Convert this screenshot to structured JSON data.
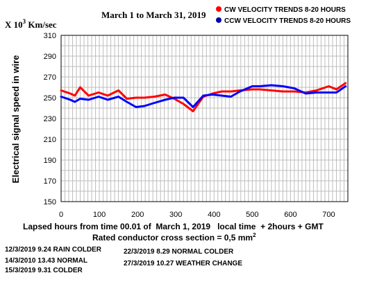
{
  "chart_data": {
    "type": "line",
    "title": "March 1 to March 31, 2019",
    "unit_prefix": "X 10",
    "unit_exponent": "3",
    "unit_suffix": " Km/sec",
    "ylabel": "Electrical signal speed in wire",
    "xlabel": "Lapsed hours from time 00.01 of  March 1, 2019   local time  + 2hours + GMT",
    "subtitle_prefix": "Rated conductor cross section = 0,5 mm",
    "subtitle_exponent": "2",
    "xlim": [
      0,
      750
    ],
    "ylim": [
      150,
      310
    ],
    "xticks": [
      0,
      100,
      200,
      300,
      400,
      500,
      600,
      700
    ],
    "xtick_labels": [
      "0",
      "100",
      "200",
      "300",
      "400",
      "500",
      "600",
      "700"
    ],
    "yticks": [
      150,
      170,
      190,
      210,
      230,
      250,
      270,
      290,
      310
    ],
    "ytick_labels": [
      "150",
      "170",
      "190",
      "210",
      "230",
      "250",
      "270",
      "290",
      "310"
    ],
    "grid": true,
    "legend_position": "top-right",
    "series": [
      {
        "name": "CW VELOCITY TRENDS 8-20 HOURS",
        "color": "#ff0000",
        "x": [
          0,
          24,
          36,
          50,
          72,
          98,
          122,
          150,
          172,
          196,
          218,
          244,
          272,
          296,
          320,
          345,
          372,
          396,
          420,
          444,
          468,
          500,
          520,
          550,
          580,
          610,
          640,
          668,
          700,
          720,
          744
        ],
        "y": [
          257,
          254,
          252,
          260,
          252,
          255,
          252,
          257,
          249,
          250,
          250,
          251,
          253,
          249,
          244,
          237,
          251,
          254,
          256,
          256,
          257,
          258,
          258,
          257,
          256,
          256,
          255,
          257,
          261,
          258,
          264
        ]
      },
      {
        "name": "CCW VELOCITY TRENDS 8-20 HOURS",
        "color": "#0000ff",
        "x": [
          0,
          24,
          36,
          50,
          72,
          98,
          122,
          150,
          172,
          196,
          218,
          244,
          272,
          296,
          320,
          345,
          372,
          396,
          420,
          444,
          468,
          500,
          520,
          550,
          580,
          610,
          640,
          668,
          700,
          720,
          744
        ],
        "y": [
          251,
          248,
          246,
          249,
          248,
          251,
          248,
          251,
          246,
          241,
          242,
          245,
          248,
          250,
          250,
          241,
          252,
          253,
          252,
          251,
          256,
          261,
          261,
          262,
          261,
          259,
          254,
          255,
          255,
          255,
          261
        ]
      }
    ]
  },
  "notes": {
    "col1": [
      "12/3/2019  9.24  RAIN COLDER",
      "14/3/2010 13.43 NORMAL",
      "15/3/2019  9.31  COLDER"
    ],
    "col2": [
      "22/3/2019 8.29  NORMAL COLDER",
      "27/3/2019 10.27 WEATHER CHANGE"
    ]
  }
}
